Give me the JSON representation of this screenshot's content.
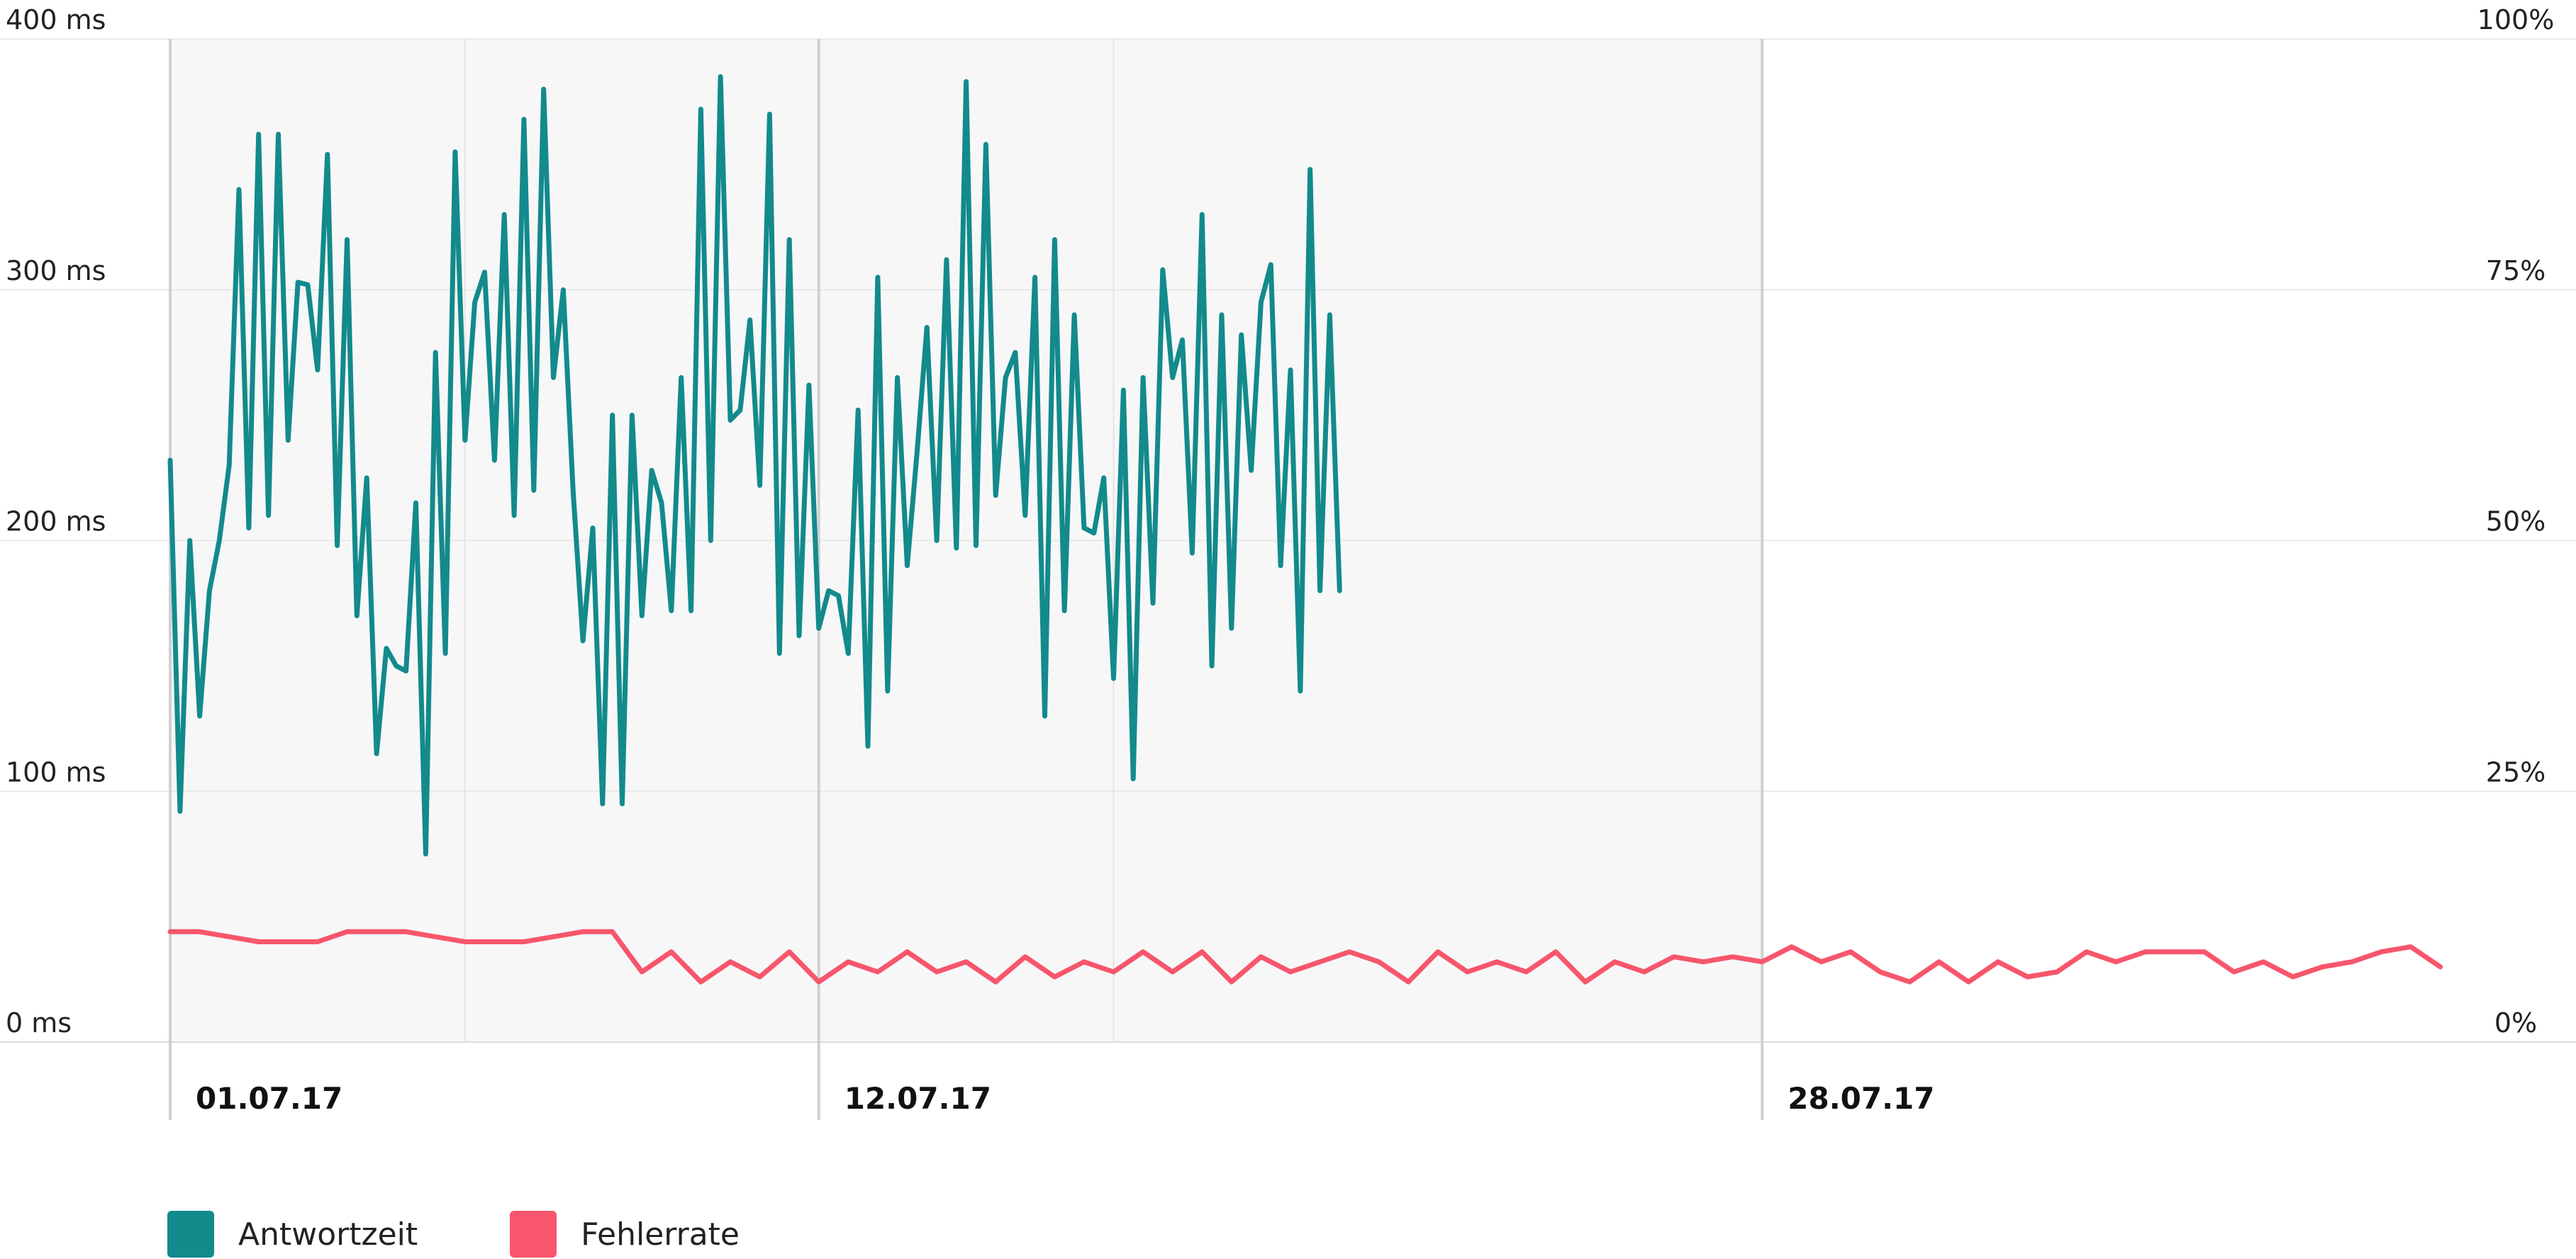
{
  "chart_data": {
    "type": "line",
    "x_axis": {
      "type": "date",
      "start": "2017-07-01",
      "end": "2017-08-08",
      "labels": [
        {
          "date": "2017-07-01",
          "text": "01.07.17"
        },
        {
          "date": "2017-07-12",
          "text": "12.07.17"
        },
        {
          "date": "2017-07-28",
          "text": "28.07.17"
        }
      ],
      "extra_gridlines": [
        "2017-07-06",
        "2017-07-17"
      ]
    },
    "y_left": {
      "range": [
        0,
        400
      ],
      "ticks": [
        {
          "value": 0,
          "label": "0 ms"
        },
        {
          "value": 100,
          "label": "100 ms"
        },
        {
          "value": 200,
          "label": "200 ms"
        },
        {
          "value": 300,
          "label": "300 ms"
        },
        {
          "value": 400,
          "label": "400 ms"
        }
      ]
    },
    "y_right": {
      "range": [
        0,
        100
      ],
      "ticks": [
        {
          "value": 0,
          "label": "0%"
        },
        {
          "value": 25,
          "label": "25%"
        },
        {
          "value": 50,
          "label": "50%"
        },
        {
          "value": 75,
          "label": "75%"
        },
        {
          "value": 100,
          "label": "100%"
        }
      ]
    },
    "shaded_range": {
      "from": "2017-07-01",
      "to": "2017-07-28"
    },
    "grid": true,
    "legend_position": "bottom-left",
    "series": [
      {
        "name": "Antwortzeit",
        "axis": "left",
        "unit": "ms",
        "color": "#138a8c",
        "points": [
          [
            "2017-07-01T00:00",
            232
          ],
          [
            "2017-07-01T04:00",
            92
          ],
          [
            "2017-07-01T08:00",
            200
          ],
          [
            "2017-07-01T12:00",
            130
          ],
          [
            "2017-07-01T16:00",
            180
          ],
          [
            "2017-07-01T20:00",
            200
          ],
          [
            "2017-07-02T00:00",
            230
          ],
          [
            "2017-07-02T04:00",
            340
          ],
          [
            "2017-07-02T08:00",
            205
          ],
          [
            "2017-07-02T12:00",
            362
          ],
          [
            "2017-07-02T16:00",
            210
          ],
          [
            "2017-07-02T20:00",
            362
          ],
          [
            "2017-07-03T00:00",
            240
          ],
          [
            "2017-07-03T04:00",
            303
          ],
          [
            "2017-07-03T08:00",
            302
          ],
          [
            "2017-07-03T12:00",
            268
          ],
          [
            "2017-07-03T16:00",
            354
          ],
          [
            "2017-07-03T20:00",
            198
          ],
          [
            "2017-07-04T00:00",
            320
          ],
          [
            "2017-07-04T04:00",
            170
          ],
          [
            "2017-07-04T08:00",
            225
          ],
          [
            "2017-07-04T12:00",
            115
          ],
          [
            "2017-07-04T16:00",
            157
          ],
          [
            "2017-07-04T20:00",
            150
          ],
          [
            "2017-07-05T00:00",
            148
          ],
          [
            "2017-07-05T04:00",
            215
          ],
          [
            "2017-07-05T08:00",
            75
          ],
          [
            "2017-07-05T12:00",
            275
          ],
          [
            "2017-07-05T16:00",
            155
          ],
          [
            "2017-07-05T20:00",
            355
          ],
          [
            "2017-07-06T00:00",
            240
          ],
          [
            "2017-07-06T04:00",
            295
          ],
          [
            "2017-07-06T08:00",
            307
          ],
          [
            "2017-07-06T12:00",
            232
          ],
          [
            "2017-07-06T16:00",
            330
          ],
          [
            "2017-07-06T20:00",
            210
          ],
          [
            "2017-07-07T00:00",
            368
          ],
          [
            "2017-07-07T04:00",
            220
          ],
          [
            "2017-07-07T08:00",
            380
          ],
          [
            "2017-07-07T12:00",
            265
          ],
          [
            "2017-07-07T16:00",
            300
          ],
          [
            "2017-07-07T20:00",
            220
          ],
          [
            "2017-07-08T00:00",
            160
          ],
          [
            "2017-07-08T04:00",
            205
          ],
          [
            "2017-07-08T08:00",
            95
          ],
          [
            "2017-07-08T12:00",
            250
          ],
          [
            "2017-07-08T16:00",
            95
          ],
          [
            "2017-07-08T20:00",
            250
          ],
          [
            "2017-07-09T00:00",
            170
          ],
          [
            "2017-07-09T04:00",
            228
          ],
          [
            "2017-07-09T08:00",
            215
          ],
          [
            "2017-07-09T12:00",
            172
          ],
          [
            "2017-07-09T16:00",
            265
          ],
          [
            "2017-07-09T20:00",
            172
          ],
          [
            "2017-07-10T00:00",
            372
          ],
          [
            "2017-07-10T04:00",
            200
          ],
          [
            "2017-07-10T08:00",
            385
          ],
          [
            "2017-07-10T12:00",
            248
          ],
          [
            "2017-07-10T16:00",
            252
          ],
          [
            "2017-07-10T20:00",
            288
          ],
          [
            "2017-07-11T00:00",
            222
          ],
          [
            "2017-07-11T04:00",
            370
          ],
          [
            "2017-07-11T08:00",
            155
          ],
          [
            "2017-07-11T12:00",
            320
          ],
          [
            "2017-07-11T16:00",
            162
          ],
          [
            "2017-07-11T20:00",
            262
          ],
          [
            "2017-07-12T00:00",
            165
          ],
          [
            "2017-07-12T04:00",
            180
          ],
          [
            "2017-07-12T08:00",
            178
          ],
          [
            "2017-07-12T12:00",
            155
          ],
          [
            "2017-07-12T16:00",
            252
          ],
          [
            "2017-07-12T20:00",
            118
          ],
          [
            "2017-07-13T00:00",
            305
          ],
          [
            "2017-07-13T04:00",
            140
          ],
          [
            "2017-07-13T08:00",
            265
          ],
          [
            "2017-07-13T12:00",
            190
          ],
          [
            "2017-07-13T16:00",
            235
          ],
          [
            "2017-07-13T20:00",
            285
          ],
          [
            "2017-07-14T00:00",
            200
          ],
          [
            "2017-07-14T04:00",
            312
          ],
          [
            "2017-07-14T08:00",
            197
          ],
          [
            "2017-07-14T12:00",
            383
          ],
          [
            "2017-07-14T16:00",
            198
          ],
          [
            "2017-07-14T20:00",
            358
          ],
          [
            "2017-07-15T00:00",
            218
          ],
          [
            "2017-07-15T04:00",
            265
          ],
          [
            "2017-07-15T08:00",
            275
          ],
          [
            "2017-07-15T12:00",
            210
          ],
          [
            "2017-07-15T16:00",
            305
          ],
          [
            "2017-07-15T20:00",
            130
          ],
          [
            "2017-07-16T00:00",
            320
          ],
          [
            "2017-07-16T04:00",
            172
          ],
          [
            "2017-07-16T08:00",
            290
          ],
          [
            "2017-07-16T12:00",
            205
          ],
          [
            "2017-07-16T16:00",
            203
          ],
          [
            "2017-07-16T20:00",
            225
          ],
          [
            "2017-07-17T00:00",
            145
          ],
          [
            "2017-07-17T04:00",
            260
          ],
          [
            "2017-07-17T08:00",
            105
          ],
          [
            "2017-07-17T12:00",
            265
          ],
          [
            "2017-07-17T16:00",
            175
          ],
          [
            "2017-07-17T20:00",
            308
          ],
          [
            "2017-07-18T00:00",
            265
          ],
          [
            "2017-07-18T04:00",
            280
          ],
          [
            "2017-07-18T08:00",
            195
          ],
          [
            "2017-07-18T12:00",
            330
          ],
          [
            "2017-07-18T16:00",
            150
          ],
          [
            "2017-07-18T20:00",
            290
          ],
          [
            "2017-07-19T00:00",
            165
          ],
          [
            "2017-07-19T04:00",
            282
          ],
          [
            "2017-07-19T08:00",
            228
          ],
          [
            "2017-07-19T12:00",
            295
          ],
          [
            "2017-07-19T16:00",
            310
          ],
          [
            "2017-07-19T20:00",
            190
          ],
          [
            "2017-07-20T00:00",
            268
          ],
          [
            "2017-07-20T04:00",
            140
          ],
          [
            "2017-07-20T08:00",
            348
          ],
          [
            "2017-07-20T12:00",
            180
          ],
          [
            "2017-07-20T16:00",
            290
          ],
          [
            "2017-07-20T20:00",
            180
          ]
        ]
      },
      {
        "name": "Fehlerrate",
        "axis": "right",
        "unit": "%",
        "color": "#f7566c",
        "points": [
          [
            "2017-07-01T00:00",
            11
          ],
          [
            "2017-07-01T12:00",
            11
          ],
          [
            "2017-07-02T00:00",
            10.5
          ],
          [
            "2017-07-02T12:00",
            10
          ],
          [
            "2017-07-03T00:00",
            10
          ],
          [
            "2017-07-03T12:00",
            10
          ],
          [
            "2017-07-04T00:00",
            11
          ],
          [
            "2017-07-04T12:00",
            11
          ],
          [
            "2017-07-05T00:00",
            11
          ],
          [
            "2017-07-05T12:00",
            10.5
          ],
          [
            "2017-07-06T00:00",
            10
          ],
          [
            "2017-07-06T12:00",
            10
          ],
          [
            "2017-07-07T00:00",
            10
          ],
          [
            "2017-07-07T12:00",
            10.5
          ],
          [
            "2017-07-08T00:00",
            11
          ],
          [
            "2017-07-08T12:00",
            11
          ],
          [
            "2017-07-09T00:00",
            7
          ],
          [
            "2017-07-09T12:00",
            9
          ],
          [
            "2017-07-10T00:00",
            6
          ],
          [
            "2017-07-10T12:00",
            8
          ],
          [
            "2017-07-11T00:00",
            6.5
          ],
          [
            "2017-07-11T12:00",
            9
          ],
          [
            "2017-07-12T00:00",
            6
          ],
          [
            "2017-07-12T12:00",
            8
          ],
          [
            "2017-07-13T00:00",
            7
          ],
          [
            "2017-07-13T12:00",
            9
          ],
          [
            "2017-07-14T00:00",
            7
          ],
          [
            "2017-07-14T12:00",
            8
          ],
          [
            "2017-07-15T00:00",
            6
          ],
          [
            "2017-07-15T12:00",
            8.5
          ],
          [
            "2017-07-16T00:00",
            6.5
          ],
          [
            "2017-07-16T12:00",
            8
          ],
          [
            "2017-07-17T00:00",
            7
          ],
          [
            "2017-07-17T12:00",
            9
          ],
          [
            "2017-07-18T00:00",
            7
          ],
          [
            "2017-07-18T12:00",
            9
          ],
          [
            "2017-07-19T00:00",
            6
          ],
          [
            "2017-07-19T12:00",
            8.5
          ],
          [
            "2017-07-20T00:00",
            7
          ],
          [
            "2017-07-20T12:00",
            8
          ],
          [
            "2017-07-21T00:00",
            9
          ],
          [
            "2017-07-21T12:00",
            8
          ],
          [
            "2017-07-22T00:00",
            6
          ],
          [
            "2017-07-22T12:00",
            9
          ],
          [
            "2017-07-23T00:00",
            7
          ],
          [
            "2017-07-23T12:00",
            8
          ],
          [
            "2017-07-24T00:00",
            7
          ],
          [
            "2017-07-24T12:00",
            9
          ],
          [
            "2017-07-25T00:00",
            6
          ],
          [
            "2017-07-25T12:00",
            8
          ],
          [
            "2017-07-26T00:00",
            7
          ],
          [
            "2017-07-26T12:00",
            8.5
          ],
          [
            "2017-07-27T00:00",
            8
          ],
          [
            "2017-07-27T12:00",
            8.5
          ],
          [
            "2017-07-28T00:00",
            8
          ],
          [
            "2017-07-28T12:00",
            9.5
          ],
          [
            "2017-07-29T00:00",
            8
          ],
          [
            "2017-07-29T12:00",
            9
          ],
          [
            "2017-07-30T00:00",
            7
          ],
          [
            "2017-07-30T12:00",
            6
          ],
          [
            "2017-07-31T00:00",
            8
          ],
          [
            "2017-07-31T12:00",
            6
          ],
          [
            "2017-08-01T00:00",
            8
          ],
          [
            "2017-08-01T12:00",
            6.5
          ],
          [
            "2017-08-02T00:00",
            7
          ],
          [
            "2017-08-02T12:00",
            9
          ],
          [
            "2017-08-03T00:00",
            8
          ],
          [
            "2017-08-03T12:00",
            9
          ],
          [
            "2017-08-04T00:00",
            9
          ],
          [
            "2017-08-04T12:00",
            9
          ],
          [
            "2017-08-05T00:00",
            7
          ],
          [
            "2017-08-05T12:00",
            8
          ],
          [
            "2017-08-06T00:00",
            6.5
          ],
          [
            "2017-08-06T12:00",
            7.5
          ],
          [
            "2017-08-07T00:00",
            8
          ],
          [
            "2017-08-07T12:00",
            9
          ],
          [
            "2017-08-08T00:00",
            9.5
          ],
          [
            "2017-08-08T12:00",
            7.5
          ]
        ]
      }
    ]
  }
}
